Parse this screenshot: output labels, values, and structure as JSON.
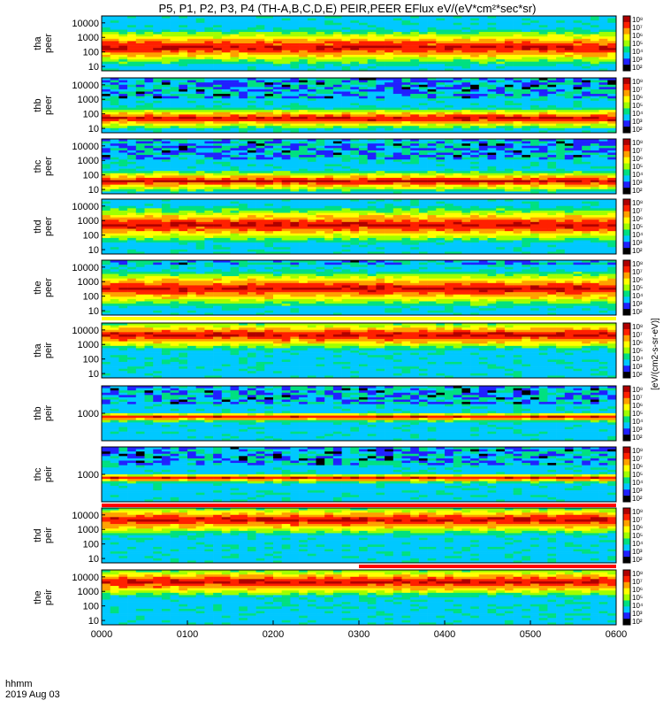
{
  "chart_data": {
    "type": "heatmap",
    "title": "P5, P1, P2, P3, P4 (TH-A,B,C,D,E) PEIR,PEER EFlux eV/(eV*cm²*sec*sr)",
    "time_label": "hhmm",
    "date_label": "2019 Aug 03",
    "x_ticks": [
      "0000",
      "0100",
      "0200",
      "0300",
      "0400",
      "0500",
      "0600"
    ],
    "x_range_hours": [
      0,
      6
    ],
    "colorbar_ticks": [
      "10⁸",
      "10⁷",
      "10⁶",
      "10⁵",
      "10⁴",
      "10³",
      "10²"
    ],
    "colorbar_label": "[eV/(cm2-s-sr-eV)]",
    "colormap": [
      "#ffffff",
      "#000000",
      "#2020ff",
      "#00c8ff",
      "#00e080",
      "#a0ff00",
      "#ffff00",
      "#ffa000",
      "#ff2000",
      "#b00000"
    ],
    "panels": [
      {
        "name": "tha peer",
        "ylabel": [
          "tha",
          "peer"
        ],
        "yticks": [
          "10000",
          "1000",
          "100",
          "10"
        ],
        "yrange": [
          5,
          30000
        ],
        "ylog": true,
        "noise_top": 0.0,
        "band_center": 0.55,
        "band_width": 0.3,
        "intensity": 6.5
      },
      {
        "name": "thb peer",
        "ylabel": [
          "thb",
          "peer"
        ],
        "yticks": [
          "10000",
          "1000",
          "100",
          "10"
        ],
        "yrange": [
          5,
          30000
        ],
        "ylog": true,
        "noise_top": 0.35,
        "band_center": 0.72,
        "band_width": 0.18,
        "intensity": 8.0
      },
      {
        "name": "thc peer",
        "ylabel": [
          "thc",
          "peer"
        ],
        "yticks": [
          "10000",
          "1000",
          "100",
          "10"
        ],
        "yrange": [
          5,
          30000
        ],
        "ylog": true,
        "noise_top": 0.35,
        "band_center": 0.75,
        "band_width": 0.18,
        "intensity": 8.0
      },
      {
        "name": "thd peer",
        "ylabel": [
          "thd",
          "peer"
        ],
        "yticks": [
          "10000",
          "1000",
          "100",
          "10"
        ],
        "yrange": [
          5,
          30000
        ],
        "ylog": true,
        "noise_top": 0.0,
        "band_center": 0.45,
        "band_width": 0.3,
        "intensity": 7.2
      },
      {
        "name": "the peer",
        "ylabel": [
          "the",
          "peer"
        ],
        "yticks": [
          "10000",
          "1000",
          "100",
          "10"
        ],
        "yrange": [
          5,
          30000
        ],
        "ylog": true,
        "noise_top": 0.08,
        "band_center": 0.5,
        "band_width": 0.3,
        "intensity": 7.0
      },
      {
        "name": "tha peir",
        "ylabel": [
          "tha",
          "peir"
        ],
        "yticks": [
          "10000",
          "1000",
          "100",
          "10"
        ],
        "yrange": [
          5,
          30000
        ],
        "ylog": true,
        "noise_top": 0.0,
        "band_center": 0.2,
        "band_width": 0.25,
        "intensity": 5.5
      },
      {
        "name": "thb peir",
        "ylabel": [
          "thb",
          "peir"
        ],
        "yticks": [
          "1000"
        ],
        "yrange": [
          100,
          10000
        ],
        "ylog": true,
        "noise_top": 0.3,
        "band_center": 0.55,
        "band_width": 0.08,
        "intensity": 7.5
      },
      {
        "name": "thc peir",
        "ylabel": [
          "thc",
          "peir"
        ],
        "yticks": [
          "1000"
        ],
        "yrange": [
          100,
          10000
        ],
        "ylog": true,
        "noise_top": 0.3,
        "band_center": 0.55,
        "band_width": 0.08,
        "intensity": 7.5
      },
      {
        "name": "thd peir",
        "ylabel": [
          "thd",
          "peir"
        ],
        "yticks": [
          "10000",
          "1000",
          "100",
          "10"
        ],
        "yrange": [
          5,
          30000
        ],
        "ylog": true,
        "noise_top": 0.0,
        "band_center": 0.2,
        "band_width": 0.25,
        "intensity": 5.5
      },
      {
        "name": "the peir",
        "ylabel": [
          "the",
          "peir"
        ],
        "yticks": [
          "10000",
          "1000",
          "100",
          "10"
        ],
        "yrange": [
          5,
          30000
        ],
        "ylog": true,
        "noise_top": 0.0,
        "band_center": 0.2,
        "band_width": 0.25,
        "intensity": 5.5
      }
    ]
  }
}
